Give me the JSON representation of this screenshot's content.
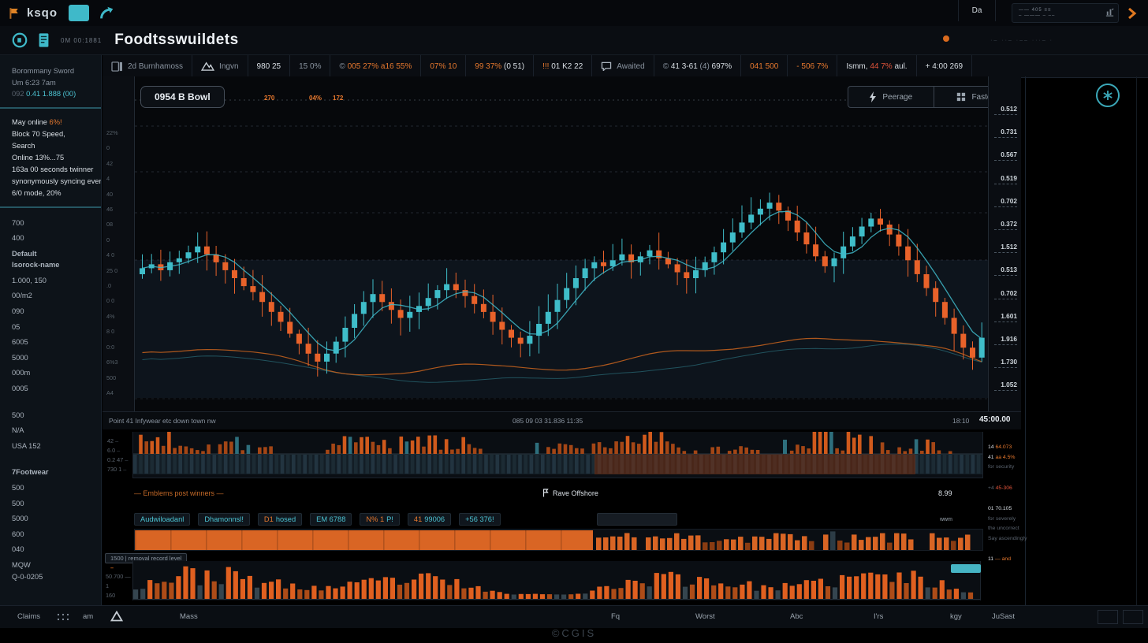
{
  "window_bar": {
    "brand": "ksqo",
    "widget_line1": "—— 405 ≡≡",
    "widget_line2": "– ——— – ––"
  },
  "header": {
    "session": "0M 00:1881",
    "title": "Foodtsswuildets",
    "right_dots": "·– ··– ·–– ···– ·"
  },
  "toolbar": {
    "items": [
      {
        "icon": "panels-icon",
        "parts": [
          {
            "t": "2d Burnhamoss",
            "c": "dim"
          }
        ]
      },
      {
        "icon": "mountain-icon",
        "parts": [
          {
            "t": "Ingvn",
            "c": "dim"
          }
        ]
      },
      {
        "parts": [
          {
            "t": "980 25",
            "c": "light"
          }
        ]
      },
      {
        "parts": [
          {
            "t": "15 0%",
            "c": "dim"
          }
        ]
      },
      {
        "parts": [
          {
            "t": "© ",
            "c": "dim"
          },
          {
            "t": "005 27% a16 55%",
            "c": "orange"
          }
        ]
      },
      {
        "parts": [
          {
            "t": "07% 10",
            "c": "orange"
          }
        ]
      },
      {
        "parts": [
          {
            "t": "99 37% ",
            "c": "orange"
          },
          {
            "t": "(0 51)",
            "c": "light"
          }
        ]
      },
      {
        "parts": [
          {
            "t": "!!! ",
            "c": "orange"
          },
          {
            "t": "01 K2 22",
            "c": "light"
          }
        ]
      },
      {
        "icon": "comment-icon",
        "parts": [
          {
            "t": "Awaited",
            "c": "dim"
          }
        ]
      },
      {
        "parts": [
          {
            "t": "© ",
            "c": "dim"
          },
          {
            "t": "41 3-61 ",
            "c": "light"
          },
          {
            "t": "(4) ",
            "c": "dim"
          },
          {
            "t": "697%",
            "c": "light"
          }
        ]
      },
      {
        "parts": [
          {
            "t": "041 500",
            "c": "orange"
          }
        ]
      },
      {
        "parts": [
          {
            "t": "- 506 7%",
            "c": "orange"
          }
        ]
      },
      {
        "parts": [
          {
            "t": "Ismm, ",
            "c": "light"
          },
          {
            "t": "44 7% ",
            "c": "red"
          },
          {
            "t": "aul.",
            "c": "light"
          }
        ]
      },
      {
        "parts": [
          {
            "t": "+ 4:00 269",
            "c": "light"
          }
        ]
      }
    ],
    "da_label": "Da"
  },
  "sidebar": {
    "top": [
      {
        "parts": [
          {
            "t": "Borommany Sword",
            "c": "dim"
          }
        ]
      },
      {
        "parts": [
          {
            "t": "Um 6:23 7am",
            "c": "dim"
          }
        ]
      },
      {
        "parts": [
          {
            "t": "092    ",
            "c": "faint"
          },
          {
            "t": "0.41 1.888 (00)",
            "c": "teal"
          }
        ]
      }
    ],
    "mid": [
      {
        "parts": [
          {
            "t": "May online ",
            "c": "light"
          },
          {
            "t": "6%!",
            "c": "orange"
          }
        ]
      },
      {
        "parts": [
          {
            "t": "Block 70 Speed,",
            "c": "light"
          }
        ]
      },
      {
        "parts": [
          {
            "t": "Search",
            "c": "light"
          }
        ]
      },
      {
        "parts": [
          {
            "t": "Online 13%...75",
            "c": "light"
          }
        ]
      },
      {
        "parts": [
          {
            "t": "163a 00 seconds twinner",
            "c": "light"
          }
        ]
      },
      {
        "parts": [
          {
            "t": "synonymously syncing everyone",
            "c": "light"
          }
        ]
      },
      {
        "parts": [
          {
            "t": "6/0 mode, 20%",
            "c": "light"
          }
        ]
      }
    ],
    "items": [
      {
        "t": "700"
      },
      {
        "t": "400"
      },
      {
        "t": "Default",
        "strong": true
      },
      {
        "t": "Isorock-name",
        "strong": true,
        "tight": true
      },
      {
        "t": "1.000, 150"
      },
      {
        "t": "00/m2"
      },
      {
        "t": "090"
      },
      {
        "t": "05"
      },
      {
        "t": "6005"
      },
      {
        "t": "5000"
      },
      {
        "t": "000m"
      },
      {
        "t": "0005"
      },
      {
        "t": "500",
        "gap": true
      },
      {
        "t": "N/A"
      },
      {
        "t": "USA 152"
      },
      {
        "t": "7Footwear",
        "strong": true,
        "gap": true
      },
      {
        "t": "500"
      },
      {
        "t": "500"
      },
      {
        "t": "5000"
      },
      {
        "t": "600"
      },
      {
        "t": "040"
      },
      {
        "t": "MQW"
      },
      {
        "t": "Q-0-0205",
        "tight": true
      }
    ]
  },
  "chart": {
    "symbol_button": "0954 B Bowl",
    "overlay_values": [
      "270",
      "04%",
      "172"
    ],
    "peerage_button": "Peerage",
    "fasted_button": "Fasted",
    "left_axis": [
      "22%",
      "0",
      "42",
      "4",
      "40",
      "46",
      "08",
      "0",
      "4 0",
      "25 0",
      ".0",
      "0 0",
      "4%",
      "8 0",
      "0:0",
      "6%3",
      "500",
      "A4"
    ],
    "price_axis": [
      "0.512",
      "0.731",
      "0.567",
      "0.519",
      "0.702",
      "0.372",
      "1.512",
      "0.513",
      "0.702",
      "1.601",
      "1.916",
      "1.730",
      "1.052"
    ],
    "status_left": "Point 41 Infywear etc down town nw",
    "status_center": "085 09 03 31.836 11:35",
    "status_right_a": "18:10",
    "status_right_b": "45:00.00"
  },
  "mid_panel": {
    "left_labels": [
      "42",
      "6.0",
      "0.2 47",
      "730 1"
    ]
  },
  "legend": {
    "series": "— Emblems post winners —",
    "center": "Rave Offshore",
    "value": "8.99",
    "note": "wwm"
  },
  "chips": [
    {
      "parts": [
        {
          "t": "Audwiloadanl",
          "c": "teal"
        }
      ]
    },
    {
      "parts": [
        {
          "t": "Dhamonnsl!",
          "c": "teal"
        }
      ]
    },
    {
      "parts": [
        {
          "t": "D1 ",
          "c": "orange"
        },
        {
          "t": "hosed",
          "c": "teal"
        }
      ]
    },
    {
      "parts": [
        {
          "t": "EM 6788",
          "c": "teal"
        }
      ]
    },
    {
      "parts": [
        {
          "t": "N% 1",
          "c": "orange"
        },
        {
          "t": "P!",
          "c": "teal"
        }
      ]
    },
    {
      "parts": [
        {
          "t": "41 ",
          "c": "orange"
        },
        {
          "t": "99006",
          "c": "teal"
        }
      ]
    },
    {
      "parts": [
        {
          "t": "+56 376!",
          "c": "teal"
        }
      ]
    }
  ],
  "tag_label": "1500 | removal record level",
  "bottom_hist": {
    "left_labels": [
      "50.700 —",
      "1",
      "160"
    ]
  },
  "stats": [
    {
      "parts": [
        {
          "t": "14 ",
          "c": "light"
        },
        {
          "t": "64.073",
          "c": "orange"
        }
      ]
    },
    {
      "parts": [
        {
          "t": "41 ",
          "c": "light"
        },
        {
          "t": "aa 4.5%",
          "c": "orange"
        }
      ]
    },
    {
      "parts": [
        {
          "t": "for security",
          "c": "faint"
        }
      ]
    },
    {
      "gap": true,
      "parts": [
        {
          "t": "+4 ",
          "c": "faint"
        },
        {
          "t": "45-306",
          "c": "red"
        }
      ]
    },
    {
      "gap": true,
      "parts": [
        {
          "t": "01 ",
          "c": "light"
        },
        {
          "t": "70.105",
          "c": "light"
        }
      ]
    },
    {
      "parts": [
        {
          "t": "for severely",
          "c": "faint"
        }
      ]
    },
    {
      "parts": [
        {
          "t": "the uncorrect",
          "c": "faint"
        }
      ]
    },
    {
      "parts": [
        {
          "t": "Say ascendingly",
          "c": "faint"
        }
      ]
    },
    {
      "gap": true,
      "parts": [
        {
          "t": "11 ",
          "c": "light"
        },
        {
          "t": "— and",
          "c": "orange"
        }
      ]
    }
  ],
  "bottom_bar": {
    "claims": "Claims",
    "am": "am",
    "mass": "Mass",
    "fq": "Fq",
    "worst": "Worst",
    "abc": "Abc",
    "irs": "I'rs",
    "kgy": "kgy",
    "jusast": "JuSast"
  },
  "footer_logo": "©CGIS",
  "colors": {
    "accent_teal": "#46c2d0",
    "accent_orange": "#e8622a",
    "background": "#0a0d12"
  },
  "chart_data": [
    {
      "type": "candlestick",
      "name": "main-price",
      "up_color": "#3fbdc9",
      "down_color": "#e8622a",
      "ylim": [
        0,
        100
      ],
      "closes": [
        55,
        57,
        54,
        58,
        60,
        63,
        66,
        62,
        58,
        54,
        50,
        46,
        43,
        38,
        33,
        28,
        22,
        17,
        12,
        8,
        12,
        18,
        25,
        32,
        38,
        42,
        38,
        34,
        30,
        33,
        36,
        40,
        44,
        47,
        44,
        41,
        37,
        33,
        28,
        24,
        20,
        17,
        21,
        27,
        33,
        39,
        45,
        50,
        55,
        58,
        56,
        59,
        62,
        58,
        61,
        64,
        60,
        57,
        53,
        50,
        54,
        58,
        63,
        68,
        73,
        78,
        82,
        85,
        88,
        84,
        79,
        73,
        67,
        61,
        56,
        60,
        66,
        71,
        76,
        80,
        77,
        72,
        66,
        59,
        52,
        45,
        38,
        30,
        22,
        15,
        10,
        20
      ],
      "overlays": [
        {
          "name": "ma-fast",
          "type": "sma",
          "window": 5,
          "color": "#3fb9c9"
        },
        {
          "name": "ma-slow",
          "type": "sma",
          "window": 12,
          "color": "#c05f1e"
        },
        {
          "name": "band-low",
          "type": "sma",
          "window": 20,
          "color": "#2e7d8a"
        }
      ]
    },
    {
      "type": "bar",
      "name": "mid-volume",
      "count": 150,
      "seed": 7,
      "color": "#c2561d",
      "alt_color": "#2e6f7d"
    },
    {
      "type": "bar",
      "name": "flow-strip",
      "count": 119,
      "seed": 11,
      "solid_until": 0.54,
      "color": "#d96524"
    },
    {
      "type": "bar",
      "name": "bottom-hist",
      "count": 118,
      "seed": 23,
      "color": "#e06020",
      "alt_color": "#35454f"
    }
  ]
}
